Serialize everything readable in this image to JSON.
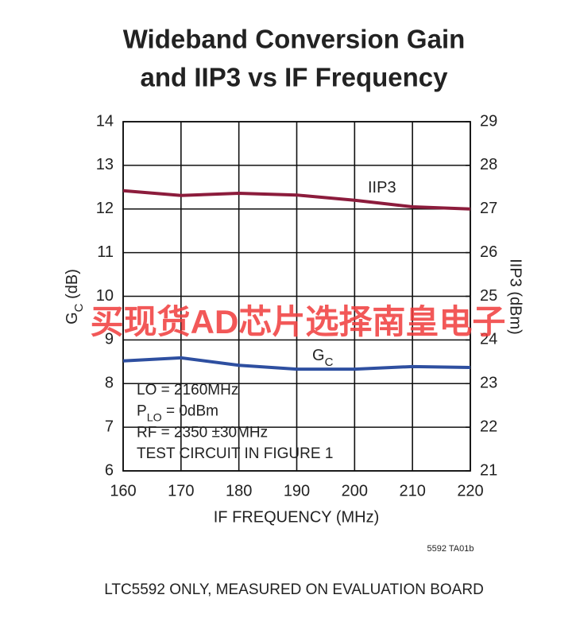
{
  "chart_data": {
    "type": "line",
    "title": [
      "Wideband Conversion Gain",
      "and IIP3 vs IF Frequency"
    ],
    "xlabel": "IF FREQUENCY (MHz)",
    "ylabel": [
      "G",
      "C",
      " (dB)"
    ],
    "y2label": "IIP3 (dBm)",
    "x": [
      160,
      170,
      180,
      190,
      200,
      210,
      220
    ],
    "xlim": [
      160,
      220
    ],
    "xticks": [
      160,
      170,
      180,
      190,
      200,
      210,
      220
    ],
    "ylim": [
      6,
      14
    ],
    "yticks": [
      6,
      7,
      8,
      9,
      10,
      11,
      12,
      13,
      14
    ],
    "y2lim": [
      21,
      29
    ],
    "y2ticks": [
      21,
      22,
      23,
      24,
      25,
      26,
      27,
      28,
      29
    ],
    "grid": true,
    "series": [
      {
        "name": [
          "IIP3"
        ],
        "color": "#8c1c3c",
        "axis": "y2",
        "values": [
          27.42,
          27.31,
          27.36,
          27.32,
          27.2,
          27.05,
          27.0
        ]
      },
      {
        "name": [
          "G",
          "C"
        ],
        "color": "#2e4fa0",
        "values": [
          8.52,
          8.59,
          8.42,
          8.33,
          8.33,
          8.39,
          8.37
        ]
      }
    ],
    "annotations": [
      [
        "LO = 2160MHz"
      ],
      [
        "P",
        "LO",
        " = 0dBm"
      ],
      [
        "RF = 2350 ±30MHz"
      ],
      [
        "TEST CIRCUIT IN FIGURE 1"
      ]
    ],
    "figure_id": "5592 TA01b",
    "caption": "LTC5592 ONLY, MEASURED ON EVALUATION BOARD",
    "watermark": "买现货AD芯片选择南皇电子"
  }
}
